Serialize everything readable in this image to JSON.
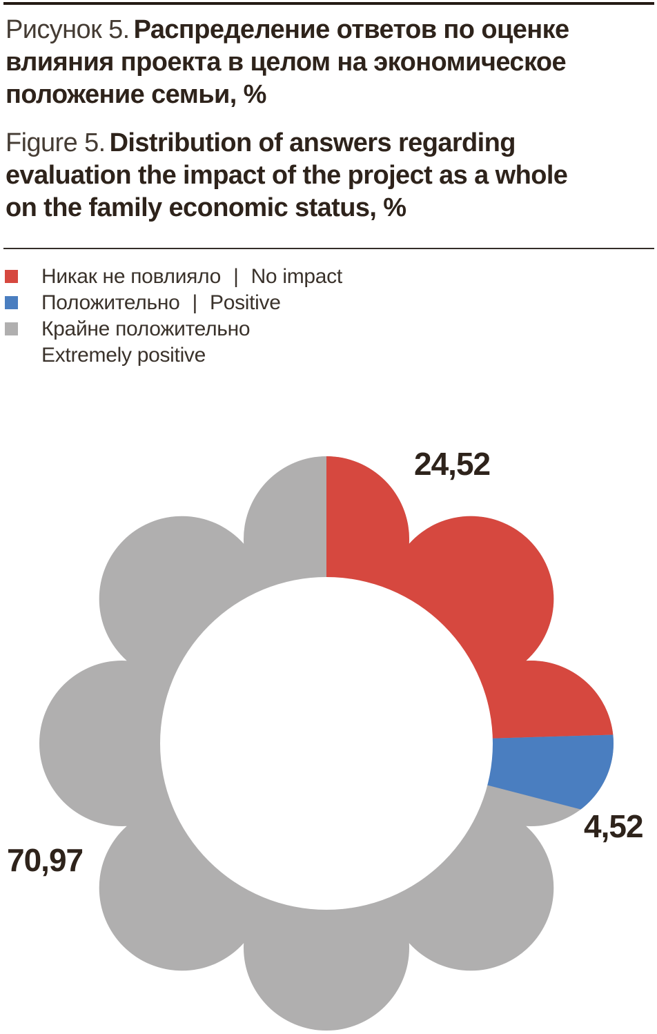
{
  "page": {
    "background": "#ffffff"
  },
  "title_ru": {
    "prefix": "Рисунок 5.",
    "rest": "Распределение ответов по оценке",
    "line2": "влияния проекта в целом на экономическое",
    "line3": "положение семьи, %"
  },
  "title_en": {
    "prefix": "Figure 5.",
    "rest": "Distribution of answers regarding",
    "line2": "evaluation the impact of the project as a whole",
    "line3": "on the family economic status, %"
  },
  "legend": {
    "items": [
      {
        "swatch_color": "#d6483f",
        "label_ru": "Никак не повлияло",
        "separator": "|",
        "label_en": "No impact",
        "layout": "inline"
      },
      {
        "swatch_color": "#4a7ec0",
        "label_ru": "Положительно",
        "separator": "|",
        "label_en": "Positive",
        "layout": "inline"
      },
      {
        "swatch_color": "#b0afaf",
        "label_ru": "Крайне положительно",
        "label_en": "Extremely positive",
        "layout": "stacked"
      }
    ]
  },
  "chart_data": {
    "type": "pie",
    "variant": "flower-petal-donut",
    "petal_count": 8,
    "start_angle_deg": 0,
    "direction": "clockwise",
    "categories": [
      "Никак не повлияло | No impact",
      "Положительно | Positive",
      "Крайне положительно | Extremely positive"
    ],
    "values": [
      24.52,
      4.52,
      70.97
    ],
    "labels": [
      "24,52",
      "4,52",
      "70,97"
    ],
    "colors": [
      "#d6483f",
      "#4a7ec0",
      "#b0afaf"
    ],
    "hole_color": "#ffffff",
    "label_color": "#2e231b",
    "legend_position": "top-left",
    "grid": "off"
  }
}
